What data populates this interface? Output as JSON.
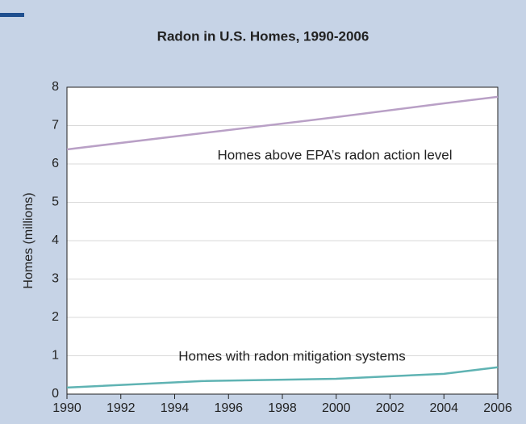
{
  "chart_data": {
    "type": "line",
    "title": "Radon in U.S. Homes, 1990-2006",
    "y_label": "Homes (millions)",
    "x": [
      1990,
      1995,
      2000,
      2004,
      2006
    ],
    "series": [
      {
        "name": "Homes above EPA’s radon action level",
        "color": "#b9a0c6",
        "values": [
          6.38,
          6.8,
          7.22,
          7.58,
          7.75
        ]
      },
      {
        "name": "Homes with radon mitigation systems",
        "color": "#5fb3b3",
        "values": [
          0.17,
          0.34,
          0.4,
          0.53,
          0.7
        ]
      }
    ],
    "xlim": [
      1990,
      2006
    ],
    "xticks": [
      1990,
      1992,
      1994,
      1996,
      1998,
      2000,
      2002,
      2004,
      2006
    ],
    "ylim": [
      0,
      8
    ],
    "yticks": [
      0,
      1,
      2,
      3,
      4,
      5,
      6,
      7,
      8
    ],
    "grid": true
  }
}
